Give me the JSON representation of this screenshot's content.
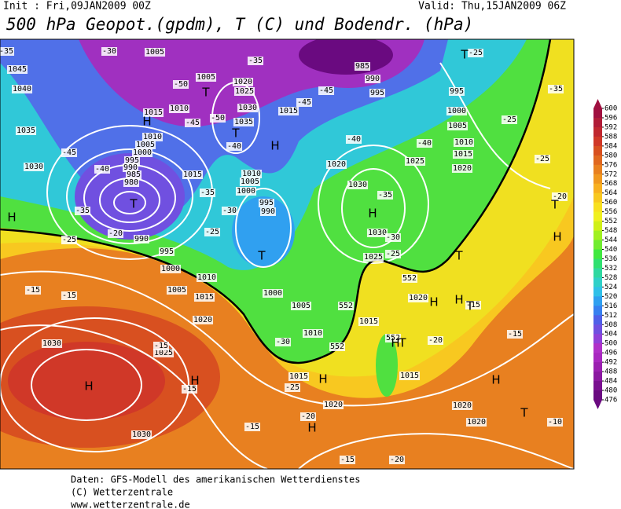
{
  "header": {
    "init": "Init : Fri,09JAN2009 00Z",
    "valid": "Valid: Thu,15JAN2009 06Z",
    "title": "500 hPa Geopot.(gpdm), T (C) und Bodendr. (hPa)"
  },
  "map": {
    "labels": [
      "1045",
      "1040",
      "1035",
      "1030",
      "1005",
      "1005",
      "1010",
      "1015",
      "1020",
      "1025",
      "1030",
      "1035",
      "1015",
      "1010",
      "1005",
      "1000",
      "995",
      "990",
      "985",
      "980",
      "1015",
      "1010",
      "1005",
      "1000",
      "995",
      "990",
      "990",
      "995",
      "1000",
      "1010",
      "1005",
      "1015",
      "1020",
      "1025",
      "1030",
      "1030",
      "1000",
      "1005",
      "1010",
      "1015",
      "1020",
      "1015",
      "1025",
      "1030",
      "1030",
      "1020",
      "1025",
      "985",
      "990",
      "995",
      "995",
      "1000",
      "1005",
      "1010",
      "1015",
      "1020",
      "1015",
      "1020",
      "1020",
      "1020",
      "-35",
      "-50",
      "-45",
      "-50",
      "-40",
      "-45",
      "-45",
      "-40",
      "-40",
      "-35",
      "-30",
      "-25",
      "-30",
      "-35",
      "-25",
      "-45",
      "-40",
      "-35",
      "-20",
      "-25",
      "-15",
      "-15",
      "-15",
      "-15",
      "-15",
      "-30",
      "-25",
      "-20",
      "-20",
      "-15",
      "-15",
      "-20",
      "-25",
      "-25",
      "-20",
      "-35",
      "-25",
      "-30",
      "-35",
      "-10",
      "-15",
      "552",
      "552",
      "552",
      "552"
    ],
    "centers": [
      "H",
      "T",
      "T",
      "H",
      "T",
      "T",
      "H",
      "T",
      "H",
      "T",
      "H",
      "H",
      "H",
      "H",
      "H",
      "H",
      "H",
      "T",
      "T",
      "H",
      "T",
      "H",
      "T"
    ]
  },
  "colorbar": {
    "ticks": [
      600,
      596,
      592,
      588,
      584,
      580,
      576,
      572,
      568,
      564,
      560,
      556,
      552,
      548,
      544,
      540,
      536,
      532,
      528,
      524,
      520,
      516,
      512,
      508,
      504,
      500,
      496,
      492,
      488,
      484,
      480,
      476
    ],
    "colors": [
      "#a01040",
      "#b01c38",
      "#c02830",
      "#d03828",
      "#d85020",
      "#e06820",
      "#e88020",
      "#f09820",
      "#f8b020",
      "#f8c820",
      "#f8e020",
      "#f0f020",
      "#d0f018",
      "#a0f020",
      "#70ec30",
      "#40e840",
      "#30e070",
      "#30d8a0",
      "#30d0c8",
      "#30c0e8",
      "#30a0f0",
      "#3880f0",
      "#5060e8",
      "#7050e0",
      "#9040d8",
      "#b030c8",
      "#a828c0",
      "#9a20b0",
      "#8a18a0",
      "#7a1090",
      "#6a0a80"
    ]
  },
  "footer": {
    "lines": [
      "Daten: GFS-Modell des amerikanischen Wetterdienstes",
      "(C) Wetterzentrale",
      "www.wetterzentrale.de"
    ]
  }
}
